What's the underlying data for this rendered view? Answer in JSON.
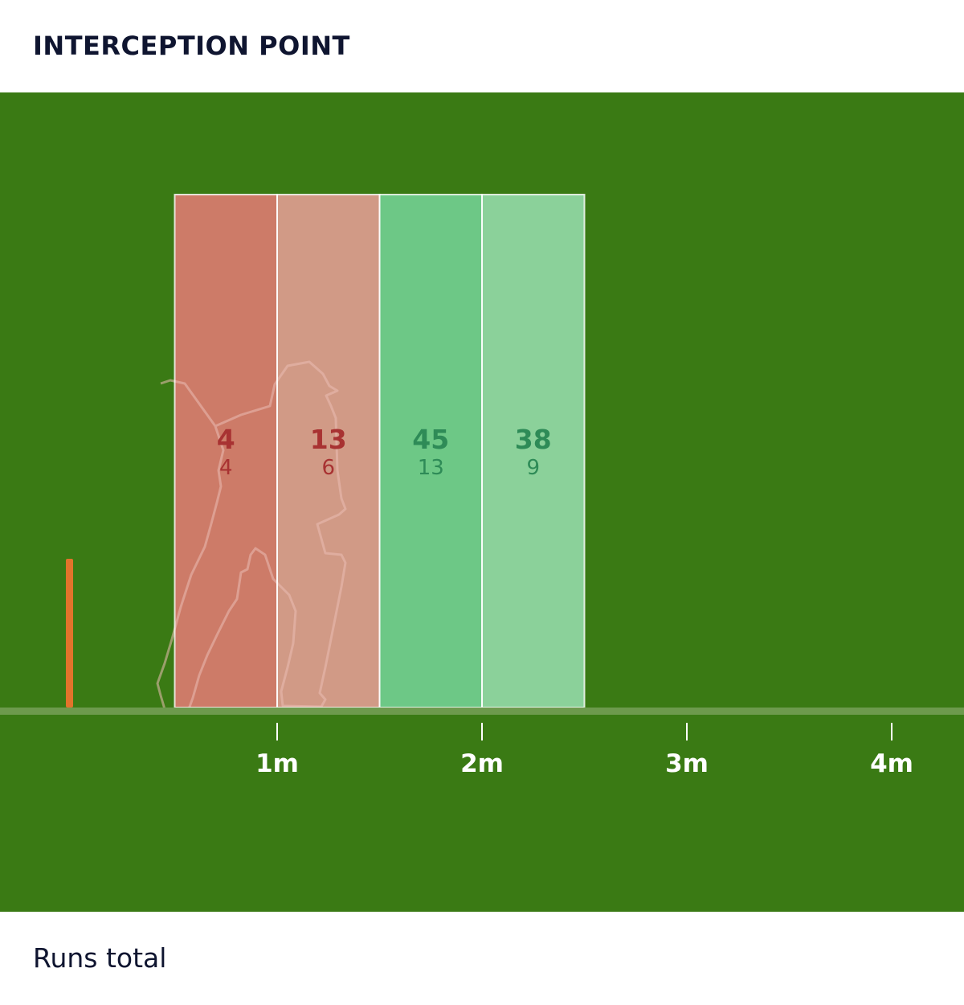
{
  "title": "INTERCEPTION POINT",
  "footer_label": "Runs total",
  "colors": {
    "field": "#3a7a14",
    "ground_line": "#6d9a4d",
    "stump": "#e2732b",
    "bar_red_dark": "#cd7b68",
    "bar_red_light": "#d19a86",
    "bar_green_dark": "#6dc886",
    "bar_green_light": "#8bd19a",
    "text_red": "#a83232",
    "text_green": "#2e8b57"
  },
  "icons": {
    "batter": "batter-silhouette-icon",
    "stump": "stump-icon"
  },
  "chart_data": {
    "type": "bar",
    "title": "INTERCEPTION POINT",
    "xlabel": "",
    "xlim": [
      0,
      4.4
    ],
    "ticks": [
      "1m",
      "2m",
      "3m",
      "4m"
    ],
    "tick_values": [
      1,
      2,
      3,
      4
    ],
    "bins": [
      [
        0.5,
        1.0
      ],
      [
        1.0,
        1.5
      ],
      [
        1.5,
        2.0
      ],
      [
        2.0,
        2.5
      ]
    ],
    "values": [
      "4",
      "13",
      "45",
      "38"
    ],
    "secondary_values": [
      "4",
      "6",
      "13",
      "9"
    ],
    "bar_colors": [
      "#cd7b68",
      "#d19a86",
      "#6dc886",
      "#8bd19a"
    ],
    "text_colors": [
      "#a83232",
      "#a83232",
      "#2e8b57",
      "#2e8b57"
    ]
  }
}
